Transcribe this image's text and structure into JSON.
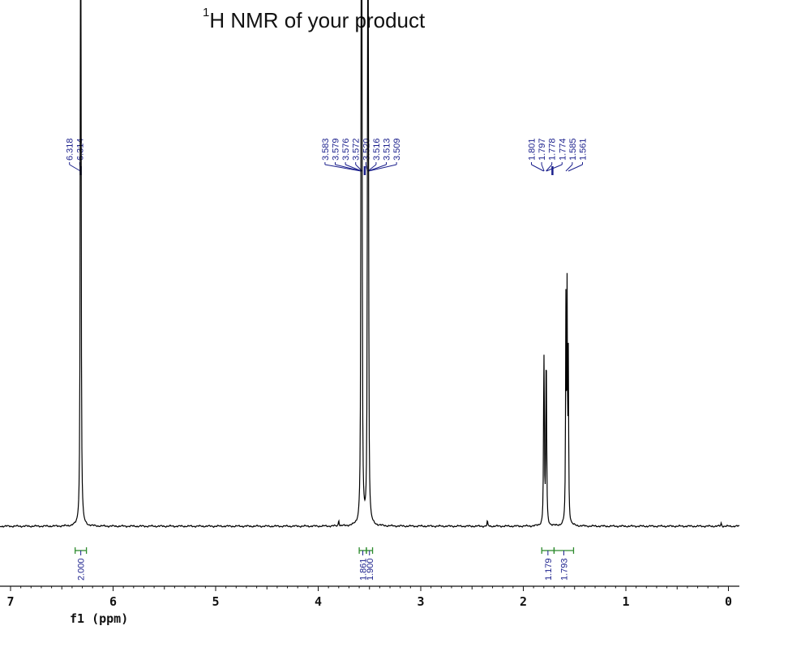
{
  "title": {
    "superscript": "1",
    "text": "H NMR of your product"
  },
  "colors": {
    "spectrum": "#000000",
    "peak_labels": "#1a1f8c",
    "integral_brackets": "#2e8b2e",
    "axis": "#111111"
  },
  "chart_data": {
    "type": "line",
    "title": "1H NMR of your product",
    "xlabel": "f1 (ppm)",
    "ylabel": "",
    "x_reversed": true,
    "xlim": [
      7,
      0
    ],
    "x_ticks": [
      "7",
      "6",
      "5",
      "4",
      "3",
      "2",
      "1",
      "0"
    ],
    "grid": false,
    "peak_groups": [
      {
        "labels": [
          "6.318",
          "6.314"
        ],
        "integration": "2.000",
        "range": [
          6.26,
          6.37
        ]
      },
      {
        "labels": [
          "3.583",
          "3.579",
          "3.576",
          "3.572",
          "3.520",
          "3.516",
          "3.513",
          "3.509"
        ],
        "integrations": [
          {
            "value": "1.861",
            "range": [
              3.53,
              3.6
            ]
          },
          {
            "value": "1.900",
            "range": [
              3.47,
              3.53
            ]
          }
        ]
      },
      {
        "labels": [
          "1.801",
          "1.797",
          "1.778",
          "1.774",
          "1.585",
          "1.561"
        ],
        "integrations": [
          {
            "value": "1.179",
            "range": [
              1.7,
              1.82
            ]
          },
          {
            "value": "1.793",
            "range": [
              1.51,
              1.7
            ]
          }
        ]
      }
    ],
    "peaks": [
      {
        "x": 6.318,
        "intensity": 1.0
      },
      {
        "x": 6.314,
        "intensity": 0.97
      },
      {
        "x": 3.583,
        "intensity": 0.4
      },
      {
        "x": 3.579,
        "intensity": 0.76
      },
      {
        "x": 3.576,
        "intensity": 0.82
      },
      {
        "x": 3.572,
        "intensity": 0.42
      },
      {
        "x": 3.52,
        "intensity": 0.38
      },
      {
        "x": 3.516,
        "intensity": 0.72
      },
      {
        "x": 3.513,
        "intensity": 0.7
      },
      {
        "x": 3.509,
        "intensity": 0.36
      },
      {
        "x": 1.801,
        "intensity": 0.2
      },
      {
        "x": 1.797,
        "intensity": 0.28
      },
      {
        "x": 1.778,
        "intensity": 0.27
      },
      {
        "x": 1.774,
        "intensity": 0.2
      },
      {
        "x": 1.585,
        "intensity": 0.48
      },
      {
        "x": 1.573,
        "intensity": 0.5
      },
      {
        "x": 1.561,
        "intensity": 0.36
      }
    ],
    "minor_peaks": [
      {
        "x": 3.8,
        "intensity": 0.015
      },
      {
        "x": 2.35,
        "intensity": 0.012
      },
      {
        "x": 0.07,
        "intensity": 0.008
      }
    ]
  }
}
